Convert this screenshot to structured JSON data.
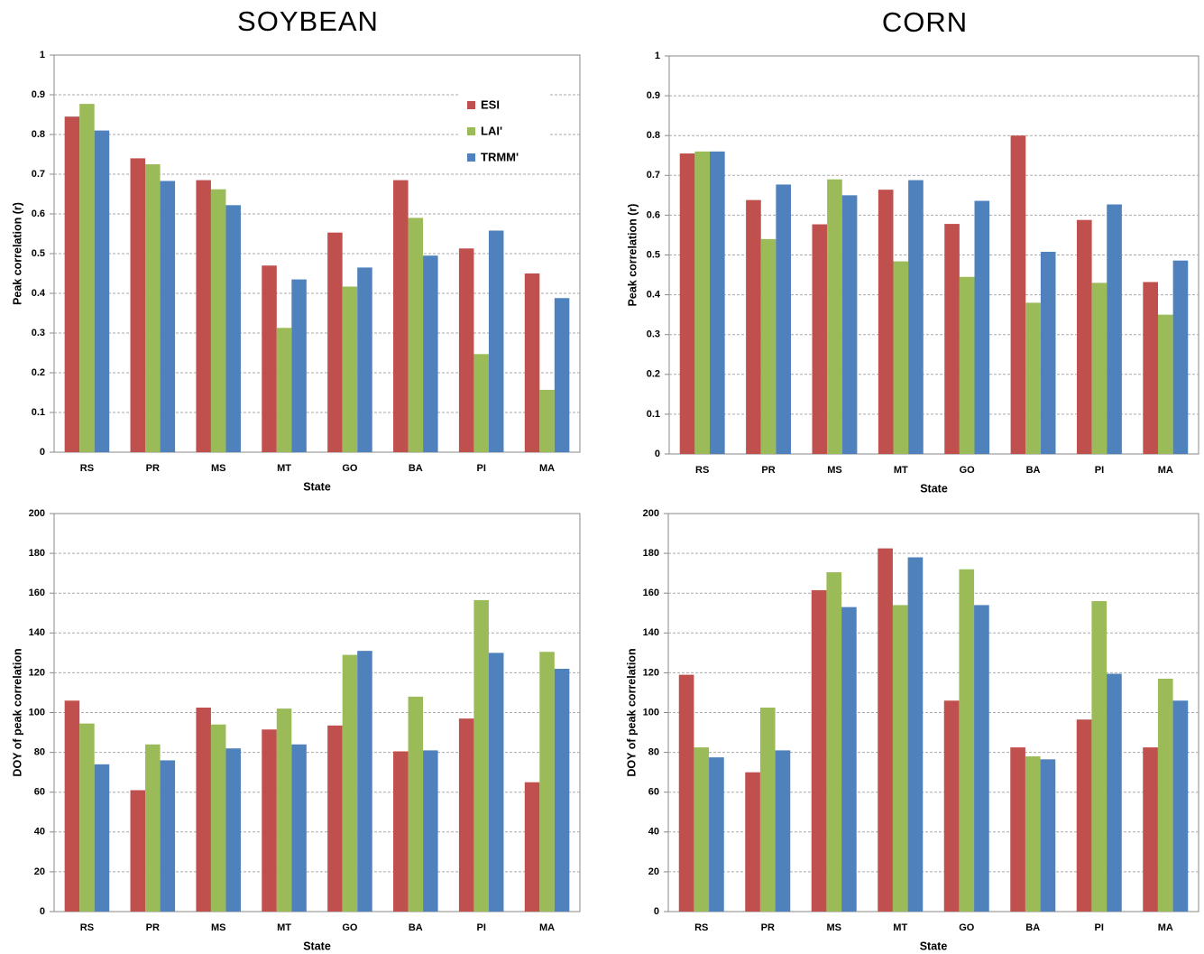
{
  "chart_data": [
    {
      "type": "bar",
      "title": "SOYBEAN",
      "xlabel": "State",
      "ylabel": "Peak correlation (r)",
      "categories": [
        "RS",
        "PR",
        "MS",
        "MT",
        "GO",
        "BA",
        "PI",
        "MA"
      ],
      "series": [
        {
          "name": "ESI",
          "color": "#c0504d",
          "values": [
            0.845,
            0.74,
            0.685,
            0.47,
            0.553,
            0.685,
            0.513,
            0.45
          ]
        },
        {
          "name": "LAI'",
          "color": "#9bbb59",
          "values": [
            0.877,
            0.725,
            0.662,
            0.313,
            0.417,
            0.59,
            0.247,
            0.157
          ]
        },
        {
          "name": "TRMM'",
          "color": "#4f81bd",
          "values": [
            0.81,
            0.683,
            0.622,
            0.435,
            0.465,
            0.495,
            0.558,
            0.388
          ]
        }
      ],
      "ylim": [
        0,
        1
      ],
      "yticks": [
        0,
        0.1,
        0.2,
        0.3,
        0.4,
        0.5,
        0.6,
        0.7,
        0.8,
        0.9,
        1
      ],
      "grid": true,
      "legend": "upper right"
    },
    {
      "type": "bar",
      "title": "CORN",
      "xlabel": "State",
      "ylabel": "Peak correlation (r)",
      "categories": [
        "RS",
        "PR",
        "MS",
        "MT",
        "GO",
        "BA",
        "PI",
        "MA"
      ],
      "series": [
        {
          "name": "ESI",
          "color": "#c0504d",
          "values": [
            0.755,
            0.638,
            0.577,
            0.664,
            0.578,
            0.8,
            0.588,
            0.432
          ]
        },
        {
          "name": "LAI'",
          "color": "#9bbb59",
          "values": [
            0.76,
            0.54,
            0.69,
            0.484,
            0.445,
            0.38,
            0.43,
            0.35
          ]
        },
        {
          "name": "TRMM'",
          "color": "#4f81bd",
          "values": [
            0.76,
            0.677,
            0.65,
            0.688,
            0.636,
            0.508,
            0.627,
            0.486
          ]
        }
      ],
      "ylim": [
        0,
        1
      ],
      "yticks": [
        0,
        0.1,
        0.2,
        0.3,
        0.4,
        0.5,
        0.6,
        0.7,
        0.8,
        0.9,
        1
      ],
      "grid": true
    },
    {
      "type": "bar",
      "xlabel": "State",
      "ylabel": "DOY of peak correlation",
      "categories": [
        "RS",
        "PR",
        "MS",
        "MT",
        "GO",
        "BA",
        "PI",
        "MA"
      ],
      "series": [
        {
          "name": "ESI",
          "color": "#c0504d",
          "values": [
            106,
            61,
            102.5,
            91.5,
            93.5,
            80.5,
            97,
            65
          ]
        },
        {
          "name": "LAI'",
          "color": "#9bbb59",
          "values": [
            94.5,
            84,
            94,
            102,
            129,
            108,
            156.5,
            130.5
          ]
        },
        {
          "name": "TRMM'",
          "color": "#4f81bd",
          "values": [
            74,
            76,
            82,
            84,
            131,
            81,
            130,
            122
          ]
        }
      ],
      "ylim": [
        0,
        200
      ],
      "yticks": [
        0,
        20,
        40,
        60,
        80,
        100,
        120,
        140,
        160,
        180,
        200
      ],
      "grid": true
    },
    {
      "type": "bar",
      "xlabel": "State",
      "ylabel": "DOY of peak correlation",
      "categories": [
        "RS",
        "PR",
        "MS",
        "MT",
        "GO",
        "BA",
        "PI",
        "MA"
      ],
      "series": [
        {
          "name": "ESI",
          "color": "#c0504d",
          "values": [
            119,
            70,
            161.5,
            182.5,
            106,
            82.5,
            96.5,
            82.5
          ]
        },
        {
          "name": "LAI'",
          "color": "#9bbb59",
          "values": [
            82.5,
            102.5,
            170.5,
            154,
            172,
            78,
            156,
            117
          ]
        },
        {
          "name": "TRMM'",
          "color": "#4f81bd",
          "values": [
            77.5,
            81,
            153,
            178,
            154,
            76.5,
            119.5,
            106
          ]
        }
      ],
      "ylim": [
        0,
        200
      ],
      "yticks": [
        0,
        20,
        40,
        60,
        80,
        100,
        120,
        140,
        160,
        180,
        200
      ],
      "grid": true
    }
  ]
}
